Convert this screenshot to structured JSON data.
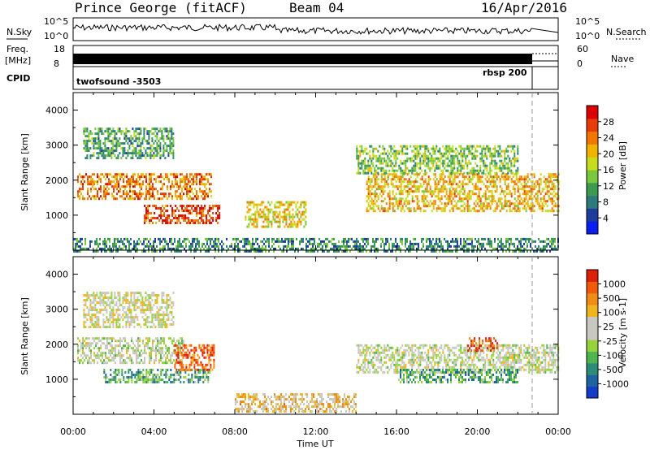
{
  "header": {
    "title": "Prince George (fitACF)",
    "beam": "Beam 04",
    "date": "16/Apr/2016"
  },
  "top_panels": {
    "nsky_label": "N.Sky",
    "nsearch_label": "N.Search",
    "nsky_ticks": [
      "10^5",
      "10^0"
    ],
    "nsky_ticks_right": [
      "10^5",
      "10^0"
    ],
    "freq_label_1": "Freq.",
    "freq_label_2": "[MHz]",
    "freq_ticks": [
      "18",
      "8"
    ],
    "nave_label": "Nave",
    "nave_ticks": [
      "60",
      "0"
    ],
    "cpid_label": "CPID",
    "cpid_left": "twofsound -3503",
    "cpid_right": "rbsp 200"
  },
  "colors": {
    "power_scale": [
      "#0a1ef0",
      "#1e3c9b",
      "#2d7a7a",
      "#3c9b50",
      "#7ac83c",
      "#c8dc1e",
      "#f0b400",
      "#f07800",
      "#e63c0a",
      "#dc0000"
    ],
    "velocity_scale": [
      "#143cc8",
      "#1e64a0",
      "#2d8c78",
      "#50b450",
      "#96d23c",
      "#c8c8c0",
      "#c8c8c0",
      "#f0b41e",
      "#f08c14",
      "#f05a0a",
      "#dc1e0a"
    ]
  },
  "chart_data": [
    {
      "type": "heatmap",
      "name": "power",
      "ylabel": "Slant Range [km]",
      "xlabel": "Time UT",
      "ylim": [
        0,
        4500
      ],
      "y_ticks": [
        "1000",
        "2000",
        "3000",
        "4000"
      ],
      "x_ticks": [
        "00:00",
        "04:00",
        "08:00",
        "12:00",
        "16:00",
        "20:00",
        "00:00"
      ],
      "colorbar_label": "Power [dB]",
      "colorbar_ticks": [
        "4",
        "8",
        "12",
        "16",
        "20",
        "24",
        "28"
      ],
      "regions": [
        {
          "t0": 0.2,
          "t1": 6.8,
          "r0": 1500,
          "r1": 2200,
          "level": 0.75
        },
        {
          "t0": 3.5,
          "t1": 7.2,
          "r0": 800,
          "r1": 1300,
          "level": 0.85
        },
        {
          "t0": 0.5,
          "t1": 5.0,
          "r0": 2600,
          "r1": 3500,
          "level": 0.35
        },
        {
          "t0": 8.5,
          "t1": 11.5,
          "r0": 700,
          "r1": 1400,
          "level": 0.6
        },
        {
          "t0": 14.5,
          "t1": 24.0,
          "r0": 1100,
          "r1": 2200,
          "level": 0.65
        },
        {
          "t0": 14.0,
          "t1": 22.0,
          "r0": 2200,
          "r1": 3000,
          "level": 0.45
        },
        {
          "t0": 0.0,
          "t1": 24.0,
          "r0": 0,
          "r1": 350,
          "level": 0.3
        }
      ]
    },
    {
      "type": "heatmap",
      "name": "velocity",
      "ylabel": "Slant Range [km]",
      "xlabel": "Time UT",
      "ylim": [
        0,
        4500
      ],
      "y_ticks": [
        "1000",
        "2000",
        "3000",
        "4000"
      ],
      "x_ticks": [
        "00:00",
        "04:00",
        "08:00",
        "12:00",
        "16:00",
        "20:00",
        "00:00"
      ],
      "colorbar_label": "Velocity [m s-1]",
      "colorbar_ticks": [
        "1000",
        "500",
        "100",
        "25",
        "-25",
        "-100",
        "-500",
        "-1000"
      ],
      "regions": [
        {
          "t0": 0.2,
          "t1": 5.5,
          "r0": 1500,
          "r1": 2200,
          "level": 0.5
        },
        {
          "t0": 1.5,
          "t1": 6.8,
          "r0": 900,
          "r1": 1300,
          "level": 0.3
        },
        {
          "t0": 5.0,
          "t1": 7.0,
          "r0": 1300,
          "r1": 2000,
          "level": 0.85
        },
        {
          "t0": 0.5,
          "t1": 5.0,
          "r0": 2500,
          "r1": 3500,
          "level": 0.55
        },
        {
          "t0": 14.0,
          "t1": 24.0,
          "r0": 1200,
          "r1": 2000,
          "level": 0.5
        },
        {
          "t0": 16.0,
          "t1": 22.0,
          "r0": 900,
          "r1": 1300,
          "level": 0.3
        },
        {
          "t0": 19.5,
          "t1": 21.0,
          "r0": 1800,
          "r1": 2200,
          "level": 0.9
        },
        {
          "t0": 8.0,
          "t1": 14.0,
          "r0": 100,
          "r1": 600,
          "level": 0.65
        }
      ]
    }
  ]
}
